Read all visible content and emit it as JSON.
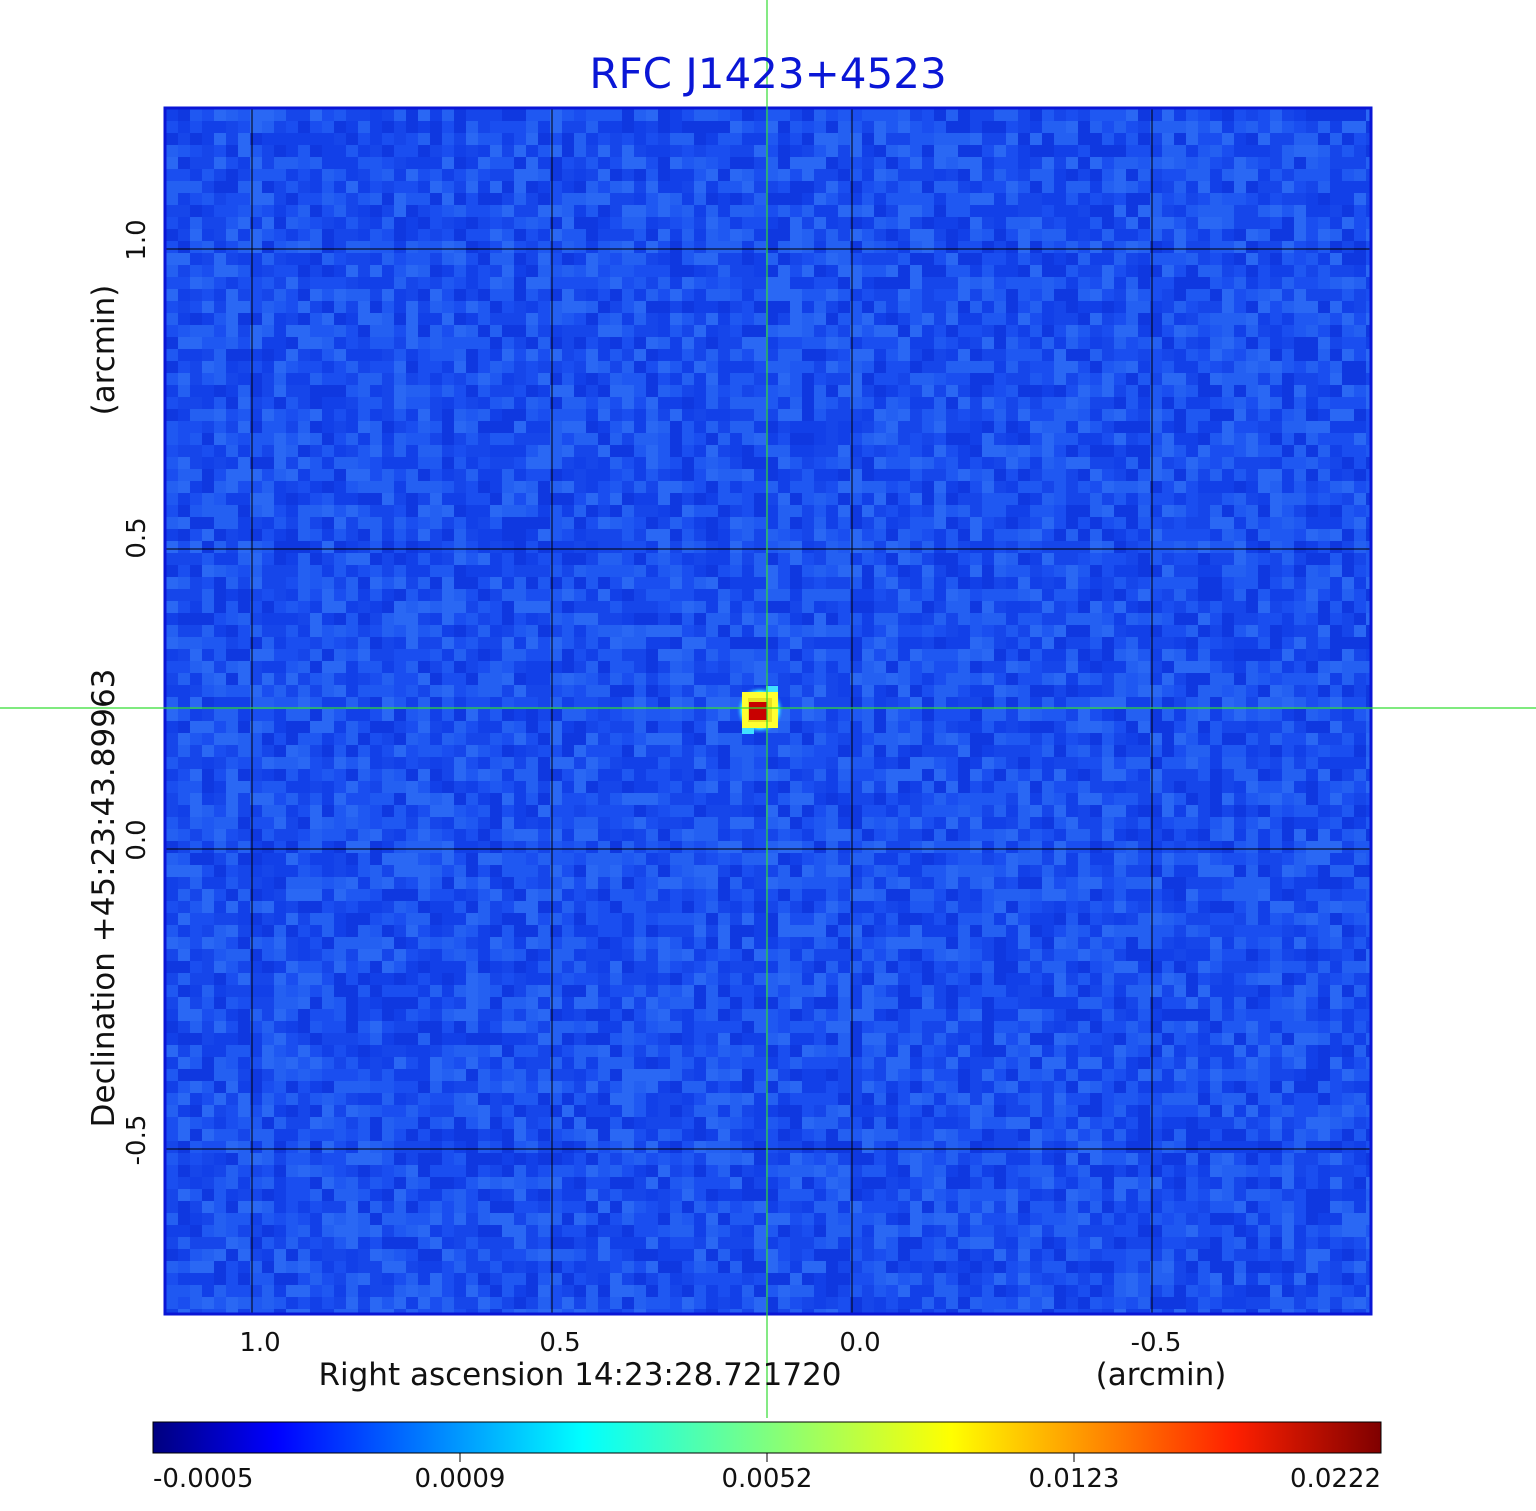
{
  "title": "RFC J1423+4523",
  "axes": {
    "x_label": "Right ascension  14:23:28.721720",
    "x_unit": "(arcmin)",
    "y_label": "Declination  +45:23:43.89963",
    "y_unit": "(arcmin)",
    "x_ticks": [
      "1.0",
      "0.5",
      "0.0",
      "-0.5"
    ],
    "y_ticks": [
      "1.0",
      "0.5",
      "0.0",
      "-0.5"
    ]
  },
  "colorbar": {
    "ticks": [
      "-0.0005",
      "0.0009",
      "0.0052",
      "0.0123",
      "0.0222"
    ],
    "colormap": [
      "#00007f",
      "#0000ff",
      "#00ffff",
      "#ffff00",
      "#ff0000",
      "#7f0000"
    ]
  },
  "colors": {
    "title": "#0a16d6",
    "frame": "#0a16d6",
    "crosshair": "#33dd33",
    "grid": "#000000",
    "background_field": "#1a52f0",
    "source_peak": "#c80000"
  }
}
